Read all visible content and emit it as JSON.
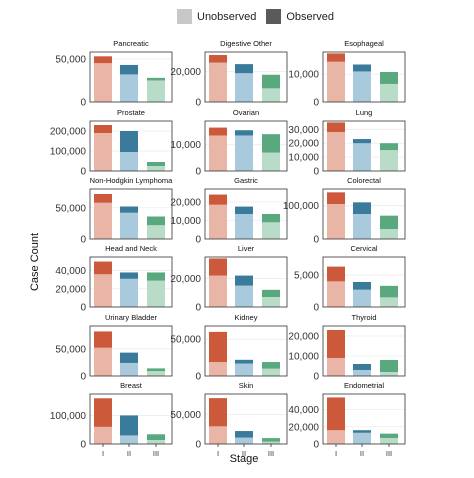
{
  "legend": {
    "unobserved_label": "Unobserved",
    "observed_label": "Observed"
  },
  "axes": {
    "xlabel": "Stage",
    "ylabel": "Case Count"
  },
  "colors": {
    "I": {
      "observed": "#cc5a3a",
      "unobserved": "#e9b5a6"
    },
    "II": {
      "observed": "#3a7a9b",
      "unobserved": "#a9cadd"
    },
    "III": {
      "observed": "#5aa87e",
      "unobserved": "#b8dcc8"
    },
    "legend_unobserved": "#c8c8c8",
    "legend_observed": "#5a5a5a",
    "panel_bg": "#ffffff",
    "grid": "#ececec"
  },
  "chart_data": {
    "type": "bar",
    "stacked": true,
    "layout": "facet-grid 6 rows x 3 columns, free y scales",
    "categories": [
      "I",
      "II",
      "III"
    ],
    "stack_order": [
      "unobserved (bottom)",
      "observed (top)"
    ],
    "xlabel": "Stage",
    "ylabel": "Case Count",
    "panels": [
      {
        "title": "Pancreatic",
        "yticks": [
          0,
          50000
        ],
        "ylim": [
          0,
          58000
        ],
        "unobserved": [
          45000,
          32000,
          25000
        ],
        "observed": [
          8000,
          11000,
          3000
        ]
      },
      {
        "title": "Digestive Other",
        "yticks": [
          0,
          20000
        ],
        "ylim": [
          0,
          33000
        ],
        "unobserved": [
          26000,
          19000,
          9000
        ],
        "observed": [
          5000,
          6000,
          9000
        ]
      },
      {
        "title": "Esophageal",
        "yticks": [
          0,
          10000
        ],
        "ylim": [
          0,
          18000
        ],
        "unobserved": [
          14500,
          11000,
          6500
        ],
        "observed": [
          3000,
          2500,
          4300
        ]
      },
      {
        "title": "Prostate",
        "yticks": [
          0,
          100000,
          200000
        ],
        "ylim": [
          0,
          250000
        ],
        "unobserved": [
          190000,
          95000,
          25000
        ],
        "observed": [
          40000,
          105000,
          20000
        ]
      },
      {
        "title": "Ovarian",
        "yticks": [
          0,
          10000
        ],
        "ylim": [
          0,
          19000
        ],
        "unobserved": [
          13500,
          13500,
          7000
        ],
        "observed": [
          3000,
          2000,
          7000
        ]
      },
      {
        "title": "Lung",
        "yticks": [
          0,
          10000,
          20000,
          30000
        ],
        "ylim": [
          0,
          36000
        ],
        "unobserved": [
          28000,
          20000,
          15000
        ],
        "observed": [
          7000,
          3000,
          5000
        ]
      },
      {
        "title": "Non-Hodgkin Lymphoma",
        "yticks": [
          0,
          50000
        ],
        "ylim": [
          0,
          80000
        ],
        "unobserved": [
          58000,
          42000,
          22000
        ],
        "observed": [
          14000,
          10000,
          14000
        ]
      },
      {
        "title": "Gastric",
        "yticks": [
          0,
          10000,
          20000
        ],
        "ylim": [
          0,
          27000
        ],
        "unobserved": [
          18500,
          13500,
          9000
        ],
        "observed": [
          5500,
          4000,
          4500
        ]
      },
      {
        "title": "Colorectal",
        "yticks": [
          0,
          100000
        ],
        "ylim": [
          0,
          150000
        ],
        "unobserved": [
          105000,
          75000,
          30000
        ],
        "observed": [
          35000,
          35000,
          40000
        ]
      },
      {
        "title": "Head and Neck",
        "yticks": [
          0,
          20000,
          40000
        ],
        "ylim": [
          0,
          55000
        ],
        "unobserved": [
          36000,
          31000,
          29000
        ],
        "observed": [
          14000,
          7000,
          9000
        ]
      },
      {
        "title": "Liver",
        "yticks": [
          0,
          20000
        ],
        "ylim": [
          0,
          35000
        ],
        "unobserved": [
          22000,
          15000,
          7000
        ],
        "observed": [
          12000,
          7000,
          5000
        ]
      },
      {
        "title": "Cervical",
        "yticks": [
          0,
          5000
        ],
        "ylim": [
          0,
          7800
        ],
        "unobserved": [
          4000,
          2700,
          1500
        ],
        "observed": [
          2300,
          1200,
          1800
        ]
      },
      {
        "title": "Urinary Bladder",
        "yticks": [
          0,
          50000
        ],
        "ylim": [
          0,
          92000
        ],
        "unobserved": [
          52000,
          24000,
          9000
        ],
        "observed": [
          30000,
          19000,
          5000
        ]
      },
      {
        "title": "Kidney",
        "yticks": [
          0,
          50000
        ],
        "ylim": [
          0,
          68000
        ],
        "unobserved": [
          19000,
          17000,
          10000
        ],
        "observed": [
          41000,
          5000,
          9000
        ]
      },
      {
        "title": "Thyroid",
        "yticks": [
          0,
          10000,
          20000
        ],
        "ylim": [
          0,
          25000
        ],
        "unobserved": [
          9000,
          3000,
          2000
        ],
        "observed": [
          14000,
          3000,
          6000
        ]
      },
      {
        "title": "Breast",
        "yticks": [
          0,
          100000
        ],
        "ylim": [
          0,
          175000
        ],
        "unobserved": [
          60000,
          30000,
          14000
        ],
        "observed": [
          100000,
          70000,
          20000
        ]
      },
      {
        "title": "Skin",
        "yticks": [
          0,
          50000
        ],
        "ylim": [
          0,
          85000
        ],
        "unobserved": [
          30000,
          11000,
          4000
        ],
        "observed": [
          48000,
          11000,
          6000
        ]
      },
      {
        "title": "Endometrial",
        "yticks": [
          0,
          20000,
          40000
        ],
        "ylim": [
          0,
          58000
        ],
        "unobserved": [
          16000,
          13000,
          7000
        ],
        "observed": [
          38000,
          3000,
          5000
        ]
      }
    ]
  }
}
